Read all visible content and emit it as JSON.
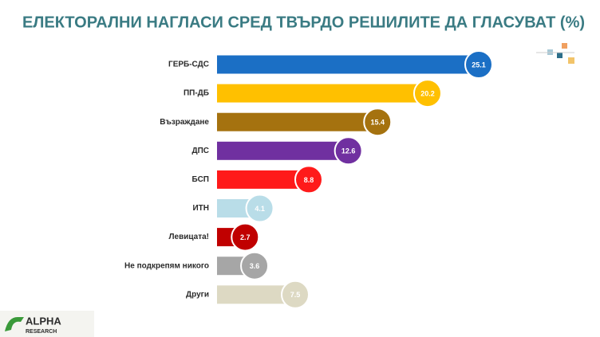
{
  "chart_data": {
    "type": "bar",
    "orientation": "horizontal",
    "title": "ЕЛЕКТОРАЛНИ НАГЛАСИ СРЕД ТВЪРДО РЕШИЛИТЕ ДА ГЛАСУВАТ (%)",
    "categories": [
      "ГЕРБ-СДС",
      "ПП-ДБ",
      "Възраждане",
      "ДПС",
      "БСП",
      "ИТН",
      "Левицата!",
      "Не подкрепям никого",
      "Други"
    ],
    "values": [
      25.1,
      20.2,
      15.4,
      12.6,
      8.8,
      4.1,
      2.7,
      3.6,
      7.5
    ],
    "colors": [
      "#1b6fc5",
      "#ffc000",
      "#a5720f",
      "#7030a0",
      "#ff1a1a",
      "#b9dde8",
      "#c00000",
      "#a6a6a6",
      "#ddd9c3"
    ],
    "data_labels": true
  },
  "logo": {
    "name": "ALPHA",
    "tagline": "RESEARCH"
  }
}
